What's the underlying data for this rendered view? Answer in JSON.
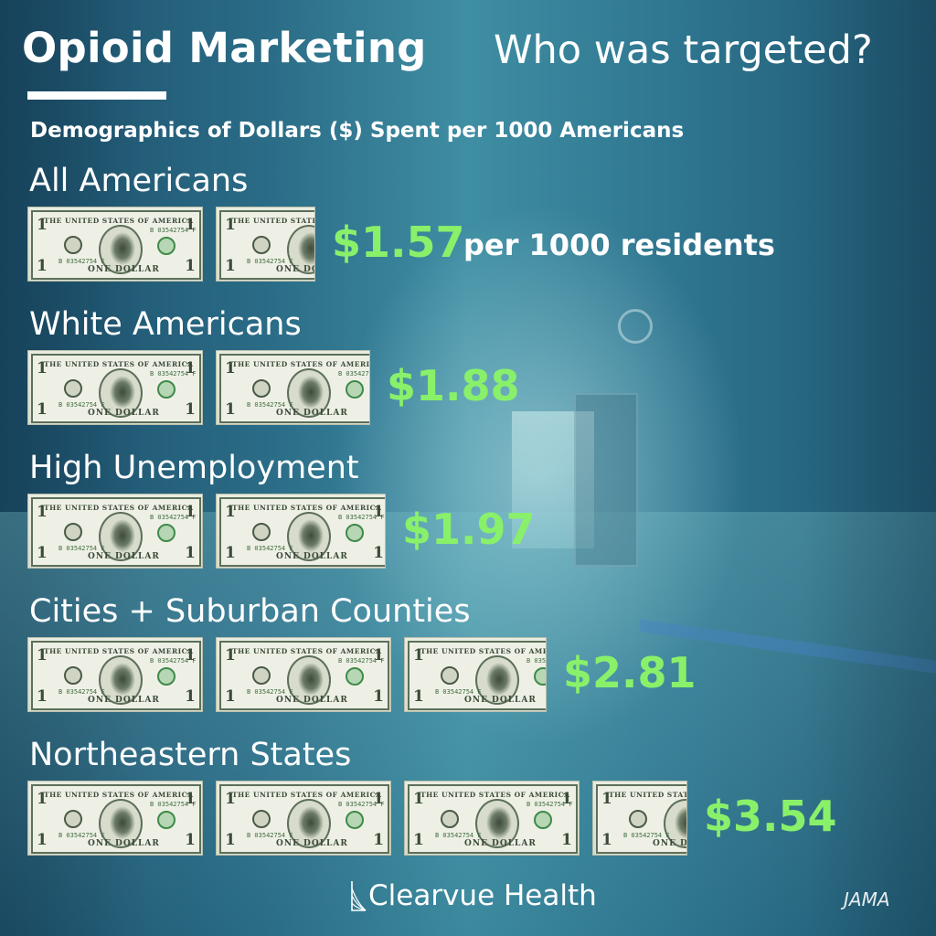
{
  "title": "Opioid Marketing",
  "subtitle": "Who was targeted?",
  "heading": "Demographics of Dollars ($) Spent per 1000 Americans",
  "bill": {
    "header": "THE UNITED STATES OF AMERICA",
    "denomination": "1",
    "portrait_letter": "B",
    "serial": "B 03542754 F",
    "footer": "ONE DOLLAR"
  },
  "chart_data": {
    "type": "bar",
    "title": "Demographics of Dollars ($) Spent per 1000 Americans",
    "unit_label": "per 1000 residents",
    "categories": [
      "All Americans",
      "White Americans",
      "High Unemployment",
      "Cities + Suburban Counties",
      "Northeastern States"
    ],
    "values": [
      1.57,
      1.88,
      1.97,
      2.81,
      3.54
    ],
    "value_labels": [
      "$1.57",
      "$1.88",
      "$1.97",
      "$2.81",
      "$3.54"
    ],
    "value_color": "#89f06a",
    "bar_glyph": "one-dollar-bill"
  },
  "logo": {
    "text": "Clearvue Health",
    "icon": "clearvue-logo-icon"
  },
  "source": "JAMA"
}
